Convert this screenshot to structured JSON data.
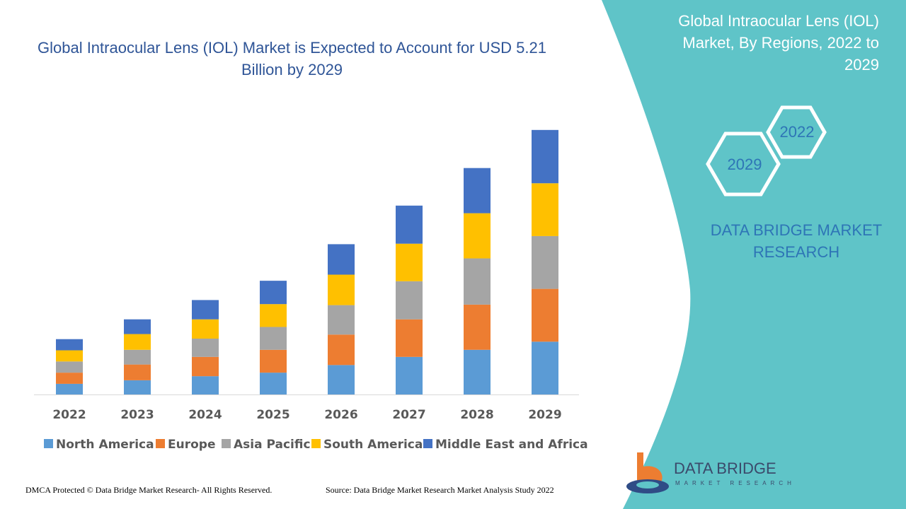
{
  "chart_data": {
    "type": "stacked-bar",
    "title": "Global Intraocular Lens (IOL) Market is Expected to Account for USD 5.21 Billion by 2029",
    "categories": [
      "2022",
      "2023",
      "2024",
      "2025",
      "2026",
      "2027",
      "2028",
      "2029"
    ],
    "series": [
      {
        "name": "North America",
        "color": "#5b9bd5",
        "values": [
          0.21,
          0.28,
          0.36,
          0.43,
          0.58,
          0.74,
          0.88,
          1.04
        ]
      },
      {
        "name": "Europe",
        "color": "#ed7d31",
        "values": [
          0.22,
          0.31,
          0.38,
          0.45,
          0.6,
          0.74,
          0.89,
          1.04
        ]
      },
      {
        "name": "Asia Pacific",
        "color": "#a5a5a5",
        "values": [
          0.22,
          0.29,
          0.36,
          0.45,
          0.58,
          0.75,
          0.91,
          1.04
        ]
      },
      {
        "name": "South America",
        "color": "#ffc000",
        "values": [
          0.22,
          0.31,
          0.38,
          0.45,
          0.6,
          0.74,
          0.89,
          1.04
        ]
      },
      {
        "name": "Middle East and Africa",
        "color": "#4472c4",
        "values": [
          0.22,
          0.29,
          0.38,
          0.46,
          0.6,
          0.75,
          0.89,
          1.05
        ]
      }
    ],
    "ylim": [
      0,
      5.5
    ]
  },
  "panel": {
    "title": "Global Intraocular Lens (IOL) Market, By Regions, 2022 to 2029",
    "hexagons": [
      "2022",
      "2029"
    ],
    "brand": "DATA BRIDGE MARKET RESEARCH"
  },
  "logo": {
    "name": "DATA BRIDGE",
    "tagline": "MARKET RESEARCH"
  },
  "footer": {
    "copyright": "DMCA Protected © Data Bridge Market Research- All Rights Reserved.",
    "source": "Source: Data Bridge Market Research Market Analysis Study 2022"
  }
}
